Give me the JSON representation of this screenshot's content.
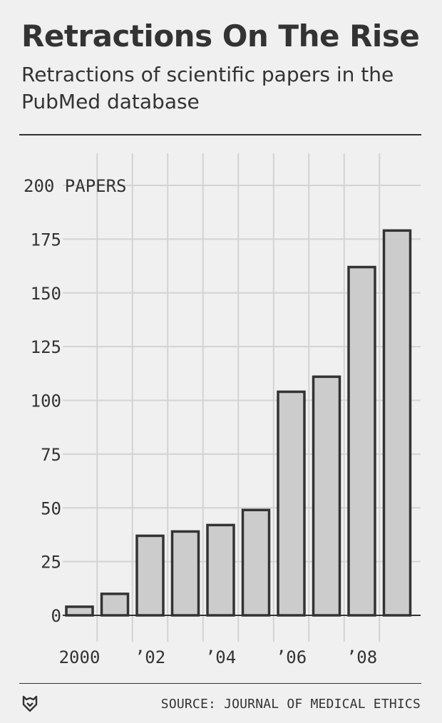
{
  "header": {
    "title": "Retractions On The Rise",
    "subtitle": "Retractions of scientific papers in the PubMed database"
  },
  "footer": {
    "source": "SOURCE: JOURNAL OF MEDICAL ETHICS",
    "logo_icon": "fivethirtyeight-fox-icon"
  },
  "colors": {
    "bar_fill": "#cccccc",
    "bar_stroke": "#333333",
    "grid": "#d3d3d3",
    "background": "#f0f0f0",
    "text": "#333333"
  },
  "chart_data": {
    "type": "bar",
    "title": "Retractions On The Rise",
    "subtitle": "Retractions of scientific papers in the PubMed database",
    "categories": [
      "2000",
      "2001",
      "2002",
      "2003",
      "2004",
      "2005",
      "2006",
      "2007",
      "2008",
      "2009"
    ],
    "values": [
      4,
      10,
      37,
      39,
      42,
      49,
      104,
      111,
      162,
      179
    ],
    "x_tick_labels": [
      {
        "category": "2000",
        "label": "2000"
      },
      {
        "category": "2002",
        "label": "’02"
      },
      {
        "category": "2004",
        "label": "’04"
      },
      {
        "category": "2006",
        "label": "’06"
      },
      {
        "category": "2008",
        "label": "’08"
      }
    ],
    "y_ticks": [
      0,
      25,
      50,
      75,
      100,
      125,
      150,
      175,
      200
    ],
    "y_top_label": "200 PAPERS",
    "ylim": [
      0,
      200
    ],
    "grid": true,
    "xlabel": "",
    "ylabel": ""
  }
}
